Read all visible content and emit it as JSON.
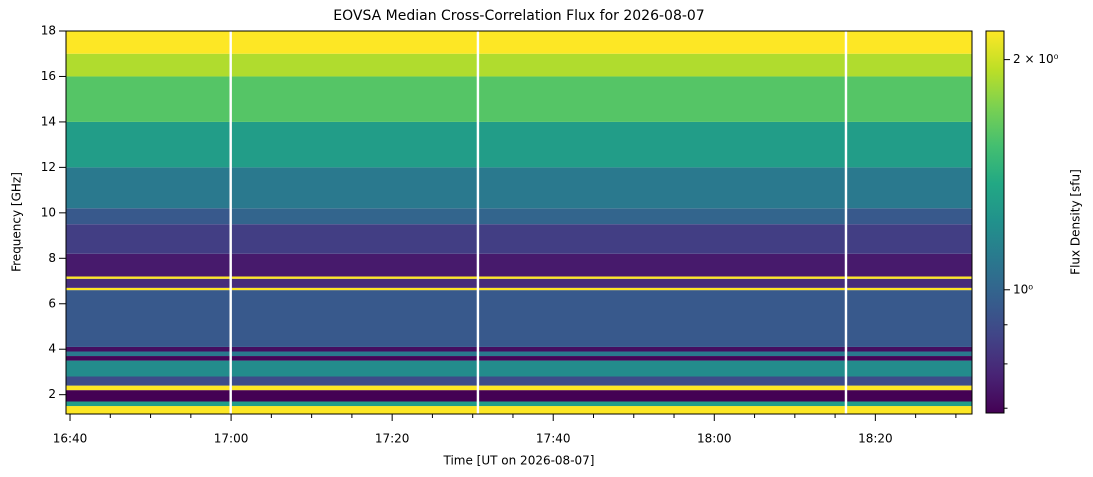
{
  "chart_data": {
    "type": "heatmap",
    "title": "EOVSA Median Cross-Correlation Flux for 2026-08-07",
    "x_label": "Time [UT on 2026-08-07]",
    "y_label": "Frequency [GHz]",
    "colorbar_label": "Flux Density [sfu]",
    "colormap": "viridis",
    "color_scale": "log",
    "xlim": [
      999.5,
      1112
    ],
    "ylim": [
      1.15,
      18
    ],
    "clim": [
      0.69,
      2.18
    ],
    "xticks": [
      {
        "value": 1000,
        "label": "16:40"
      },
      {
        "value": 1020,
        "label": "17:00"
      },
      {
        "value": 1040,
        "label": "17:20"
      },
      {
        "value": 1060,
        "label": "17:40"
      },
      {
        "value": 1080,
        "label": "18:00"
      },
      {
        "value": 1100,
        "label": "18:20"
      }
    ],
    "xticks_minor": [
      1005,
      1010,
      1015,
      1025,
      1030,
      1035,
      1045,
      1050,
      1055,
      1065,
      1070,
      1075,
      1085,
      1090,
      1095,
      1105,
      1110
    ],
    "yticks": [
      2,
      4,
      6,
      8,
      10,
      12,
      14,
      16,
      18
    ],
    "cticks": [
      {
        "value": 1,
        "label": "10⁰"
      },
      {
        "value": 2,
        "label": "2 × 10⁰"
      }
    ],
    "cticks_minor": [
      0.7,
      0.8,
      0.9
    ],
    "x_edges": [
      999.5,
      1019.8,
      1020.1,
      1050.5,
      1050.8,
      1096.2,
      1096.5,
      1112
    ],
    "y_edges": [
      1.15,
      1.5,
      1.7,
      2.2,
      2.4,
      2.8,
      3.5,
      3.7,
      3.9,
      4.1,
      6.6,
      6.7,
      7.1,
      7.2,
      8.2,
      9.5,
      10.2,
      12,
      14,
      16,
      17,
      18
    ],
    "z": [
      [
        2.3,
        null,
        2.3,
        null,
        2.3,
        null,
        2.3
      ],
      [
        1.3,
        null,
        1.3,
        null,
        1.3,
        null,
        1.3
      ],
      [
        0.68,
        null,
        0.68,
        null,
        0.68,
        null,
        0.68
      ],
      [
        2.3,
        null,
        2.3,
        null,
        2.3,
        null,
        2.3
      ],
      [
        0.9,
        null,
        0.9,
        null,
        0.9,
        null,
        0.9
      ],
      [
        1.2,
        null,
        1.2,
        null,
        1.2,
        null,
        1.2
      ],
      [
        0.7,
        null,
        0.7,
        null,
        0.7,
        null,
        0.7
      ],
      [
        1.1,
        null,
        1.1,
        null,
        1.1,
        null,
        1.1
      ],
      [
        0.72,
        null,
        0.72,
        null,
        0.72,
        null,
        0.72
      ],
      [
        0.95,
        null,
        0.95,
        null,
        0.95,
        null,
        0.95
      ],
      [
        2.2,
        null,
        2.2,
        null,
        2.2,
        null,
        2.2
      ],
      [
        0.8,
        null,
        0.8,
        null,
        0.8,
        null,
        0.8
      ],
      [
        2.2,
        null,
        2.2,
        null,
        2.2,
        null,
        2.2
      ],
      [
        0.75,
        null,
        0.75,
        null,
        0.75,
        null,
        0.75
      ],
      [
        0.85,
        null,
        0.85,
        null,
        0.85,
        null,
        0.85
      ],
      [
        0.95,
        null,
        1.0,
        null,
        1.0,
        null,
        0.95
      ],
      [
        1.1,
        null,
        1.1,
        null,
        1.1,
        null,
        1.1
      ],
      [
        1.3,
        null,
        1.3,
        null,
        1.3,
        null,
        1.3
      ],
      [
        1.6,
        null,
        1.6,
        null,
        1.6,
        null,
        1.6
      ],
      [
        1.9,
        null,
        1.9,
        null,
        1.9,
        null,
        1.9
      ],
      [
        2.2,
        null,
        2.2,
        null,
        2.2,
        null,
        2.2
      ]
    ]
  }
}
